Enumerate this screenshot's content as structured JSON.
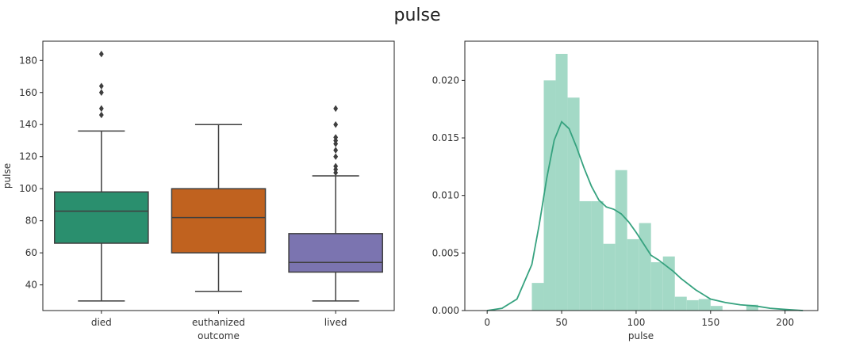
{
  "figure": {
    "suptitle": "pulse"
  },
  "chart_data": [
    {
      "type": "box",
      "title": "",
      "xlabel": "outcome",
      "ylabel": "pulse",
      "ylim": [
        24,
        192
      ],
      "yticks": [
        40,
        60,
        80,
        100,
        120,
        140,
        160,
        180
      ],
      "categories": [
        "died",
        "euthanized",
        "lived"
      ],
      "grid": false,
      "boxes": [
        {
          "category": "died",
          "whisker_low": 30,
          "q1": 66,
          "median": 86,
          "q3": 98,
          "whisker_high": 136,
          "outliers": [
            146,
            150,
            160,
            164,
            184
          ],
          "color": "#2a8f6e"
        },
        {
          "category": "euthanized",
          "whisker_low": 36,
          "q1": 60,
          "median": 82,
          "q3": 100,
          "whisker_high": 140,
          "outliers": [],
          "color": "#c0621f"
        },
        {
          "category": "lived",
          "whisker_low": 30,
          "q1": 48,
          "median": 54,
          "q3": 72,
          "whisker_high": 108,
          "outliers": [
            110,
            112,
            114,
            120,
            124,
            128,
            130,
            132,
            140,
            150
          ],
          "color": "#7b74b0"
        }
      ]
    },
    {
      "type": "histogram",
      "title": "",
      "xlabel": "pulse",
      "ylabel": "",
      "xlim": [
        -15,
        222
      ],
      "ylim": [
        0,
        0.0234
      ],
      "xticks": [
        0,
        50,
        100,
        150,
        200
      ],
      "yticks": [
        0.0,
        0.005,
        0.01,
        0.015,
        0.02
      ],
      "ytick_labels": [
        "0.000",
        "0.005",
        "0.010",
        "0.015",
        "0.020"
      ],
      "grid": false,
      "bar_color": "#a3d9c6",
      "kde_color": "#36a27f",
      "bin_edges": [
        30,
        38,
        46,
        54,
        62,
        70,
        78,
        86,
        94,
        102,
        110,
        118,
        126,
        134,
        142,
        150,
        158,
        166,
        174,
        182
      ],
      "densities": [
        0.0024,
        0.02,
        0.0223,
        0.0185,
        0.0095,
        0.0095,
        0.0058,
        0.0122,
        0.0062,
        0.0076,
        0.0042,
        0.0047,
        0.0012,
        0.0009,
        0.001,
        0.0004,
        0,
        0,
        0.0005
      ],
      "kde_x": [
        0,
        10,
        20,
        30,
        35,
        40,
        45,
        50,
        55,
        60,
        65,
        70,
        75,
        80,
        85,
        90,
        95,
        100,
        105,
        110,
        115,
        120,
        125,
        130,
        140,
        150,
        160,
        170,
        180,
        190,
        200,
        212
      ],
      "kde_y": [
        0,
        0.0002,
        0.001,
        0.004,
        0.0075,
        0.0115,
        0.0148,
        0.0164,
        0.0158,
        0.0142,
        0.0124,
        0.0108,
        0.0096,
        0.009,
        0.0088,
        0.0084,
        0.0077,
        0.0068,
        0.0058,
        0.0048,
        0.0044,
        0.0039,
        0.0034,
        0.0028,
        0.0018,
        0.001,
        0.0007,
        0.0005,
        0.0004,
        0.0002,
        0.0001,
        0
      ]
    }
  ]
}
